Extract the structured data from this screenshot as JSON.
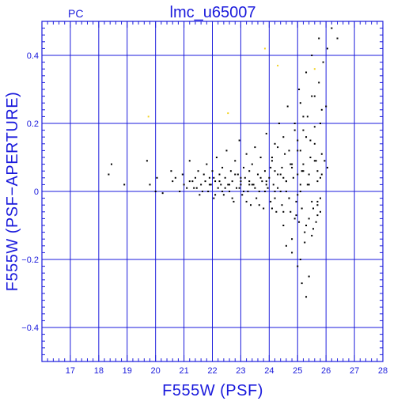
{
  "chart_data": {
    "type": "scatter",
    "title": "lmc_u65007",
    "corner_label": "PC",
    "xlabel": "F555W (PSF)",
    "ylabel": "F555W (PSF−APERTURE)",
    "xlim": [
      16,
      28
    ],
    "ylim": [
      -0.5,
      0.5
    ],
    "x_major_ticks": [
      17,
      18,
      19,
      20,
      21,
      22,
      23,
      24,
      25,
      26,
      27,
      28
    ],
    "y_major_ticks": [
      -0.4,
      -0.2,
      0,
      0.2,
      0.4
    ],
    "y_tick_labels": [
      "−0.4",
      "−0.2",
      "0",
      "0.2",
      "0.4"
    ],
    "grid": true,
    "axis_color": "#1a1adc",
    "series": [
      {
        "color": "#000000",
        "x": [
          18.35,
          18.45,
          18.9,
          19.7,
          19.8,
          20.0,
          20.05,
          20.25,
          20.55,
          20.6,
          20.7,
          20.85,
          20.95,
          21.1,
          21.2,
          21.3,
          21.35,
          21.4,
          21.5,
          21.55,
          21.6,
          21.7,
          21.75,
          21.8,
          21.85,
          21.9,
          21.95,
          22.0,
          22.05,
          22.1,
          22.15,
          22.2,
          22.25,
          22.3,
          22.35,
          22.4,
          22.45,
          22.5,
          22.55,
          22.6,
          22.65,
          22.7,
          22.75,
          22.8,
          22.85,
          22.9,
          22.95,
          23.0,
          23.05,
          23.1,
          23.15,
          23.2,
          23.25,
          23.3,
          23.35,
          23.4,
          23.45,
          23.5,
          23.55,
          23.6,
          23.65,
          23.7,
          23.75,
          23.8,
          23.85,
          23.9,
          23.95,
          24.0,
          24.05,
          24.1,
          24.15,
          24.2,
          24.25,
          24.3,
          24.35,
          24.4,
          24.45,
          24.5,
          24.55,
          24.6,
          24.65,
          24.7,
          24.75,
          24.8,
          24.85,
          24.9,
          24.95,
          25.0,
          25.05,
          25.1,
          25.15,
          25.2,
          25.25,
          25.3,
          25.35,
          25.4,
          25.45,
          25.5,
          25.55,
          25.6,
          25.65,
          25.7,
          25.75,
          25.8,
          25.85,
          25.9,
          26.0,
          26.05,
          26.2,
          26.4,
          21.0,
          21.2,
          21.45,
          21.65,
          21.9,
          22.05,
          22.25,
          22.45,
          22.6,
          22.8,
          23.0,
          23.1,
          23.3,
          23.5,
          23.7,
          23.9,
          24.05,
          24.2,
          24.4,
          24.6,
          24.8,
          25.0,
          25.2,
          25.4,
          25.6,
          25.8,
          22.1,
          22.35,
          22.7,
          22.95,
          23.2,
          23.4,
          23.65,
          23.85,
          24.1,
          24.3,
          24.5,
          24.7,
          24.9,
          25.1,
          25.3,
          25.5,
          25.7,
          24.1,
          24.3,
          24.5,
          24.7,
          24.9,
          25.0,
          25.1,
          25.2,
          25.35,
          25.5,
          25.6,
          25.75,
          25.85,
          24.2,
          24.45,
          24.6,
          24.75,
          24.95,
          25.05,
          25.15,
          25.25,
          25.4,
          25.55,
          25.7,
          25.8,
          25.0,
          25.1,
          25.2,
          25.3,
          25.45,
          25.6,
          25.7,
          25.85,
          25.95,
          26.05,
          24.6,
          24.8,
          25.0,
          25.15,
          25.3,
          25.5,
          25.65,
          25.8,
          23.0,
          23.3,
          23.6,
          23.9,
          24.2,
          24.5,
          24.8,
          25.1,
          25.4,
          25.7
        ],
        "y": [
          0.05,
          0.08,
          0.02,
          0.09,
          0.02,
          0.0,
          0.04,
          -0.005,
          0.06,
          0.03,
          0.04,
          0.0,
          0.05,
          0.01,
          0.09,
          0.03,
          0.01,
          0.04,
          0.06,
          -0.01,
          0.02,
          0.05,
          0.03,
          0.08,
          0.0,
          0.04,
          0.02,
          0.06,
          -0.02,
          0.03,
          0.1,
          0.01,
          0.05,
          0.02,
          0.07,
          -0.01,
          0.04,
          0.12,
          0.02,
          0.0,
          0.06,
          0.03,
          -0.03,
          0.09,
          0.01,
          0.05,
          0.15,
          0.02,
          -0.01,
          0.07,
          0.04,
          0.11,
          0.0,
          0.03,
          -0.04,
          0.08,
          0.02,
          0.13,
          -0.02,
          0.05,
          0.0,
          0.1,
          0.03,
          -0.05,
          0.06,
          0.17,
          0.01,
          0.04,
          -0.03,
          0.09,
          0.02,
          0.14,
          -0.06,
          0.05,
          0.2,
          0.0,
          0.07,
          -0.1,
          0.11,
          0.03,
          0.25,
          -0.02,
          0.08,
          -0.14,
          0.04,
          0.18,
          -0.07,
          0.12,
          0.3,
          -0.2,
          0.06,
          0.22,
          -0.12,
          0.35,
          0.02,
          -0.25,
          0.15,
          0.4,
          -0.05,
          0.28,
          0.09,
          -0.03,
          0.45,
          0.2,
          0.05,
          0.38,
          0.25,
          0.42,
          0.48,
          0.45,
          0.02,
          0.03,
          0.01,
          0.0,
          0.02,
          0.04,
          0.03,
          0.01,
          0.02,
          0.05,
          0.03,
          0.0,
          0.06,
          0.01,
          0.04,
          0.02,
          0.07,
          0.0,
          0.05,
          0.03,
          0.08,
          -0.01,
          0.06,
          0.02,
          0.09,
          0.04,
          -0.01,
          0.0,
          -0.02,
          0.01,
          -0.03,
          0.02,
          -0.04,
          0.0,
          -0.05,
          0.01,
          -0.06,
          -0.02,
          -0.08,
          0.0,
          -0.1,
          -0.03,
          -0.07,
          0.1,
          0.13,
          0.16,
          0.12,
          0.2,
          0.15,
          0.26,
          0.18,
          0.22,
          0.28,
          0.19,
          0.32,
          0.24,
          -0.02,
          -0.04,
          0.0,
          -0.06,
          -0.03,
          -0.09,
          -0.05,
          -0.15,
          -0.08,
          -0.11,
          -0.04,
          -0.02,
          0.05,
          0.12,
          0.08,
          0.16,
          0.1,
          0.14,
          0.06,
          0.11,
          0.09,
          0.07,
          -0.16,
          -0.18,
          -0.22,
          -0.27,
          -0.31,
          -0.13,
          -0.09,
          -0.06,
          0.04,
          0.02,
          0.05,
          0.03,
          0.06,
          0.04,
          0.07,
          0.02,
          0.05,
          0.03
        ]
      },
      {
        "color": "#f2d21e",
        "x": [
          19.75,
          22.55,
          23.85,
          24.3,
          25.6
        ],
        "y": [
          0.22,
          0.23,
          0.42,
          0.37,
          0.36
        ]
      }
    ]
  }
}
